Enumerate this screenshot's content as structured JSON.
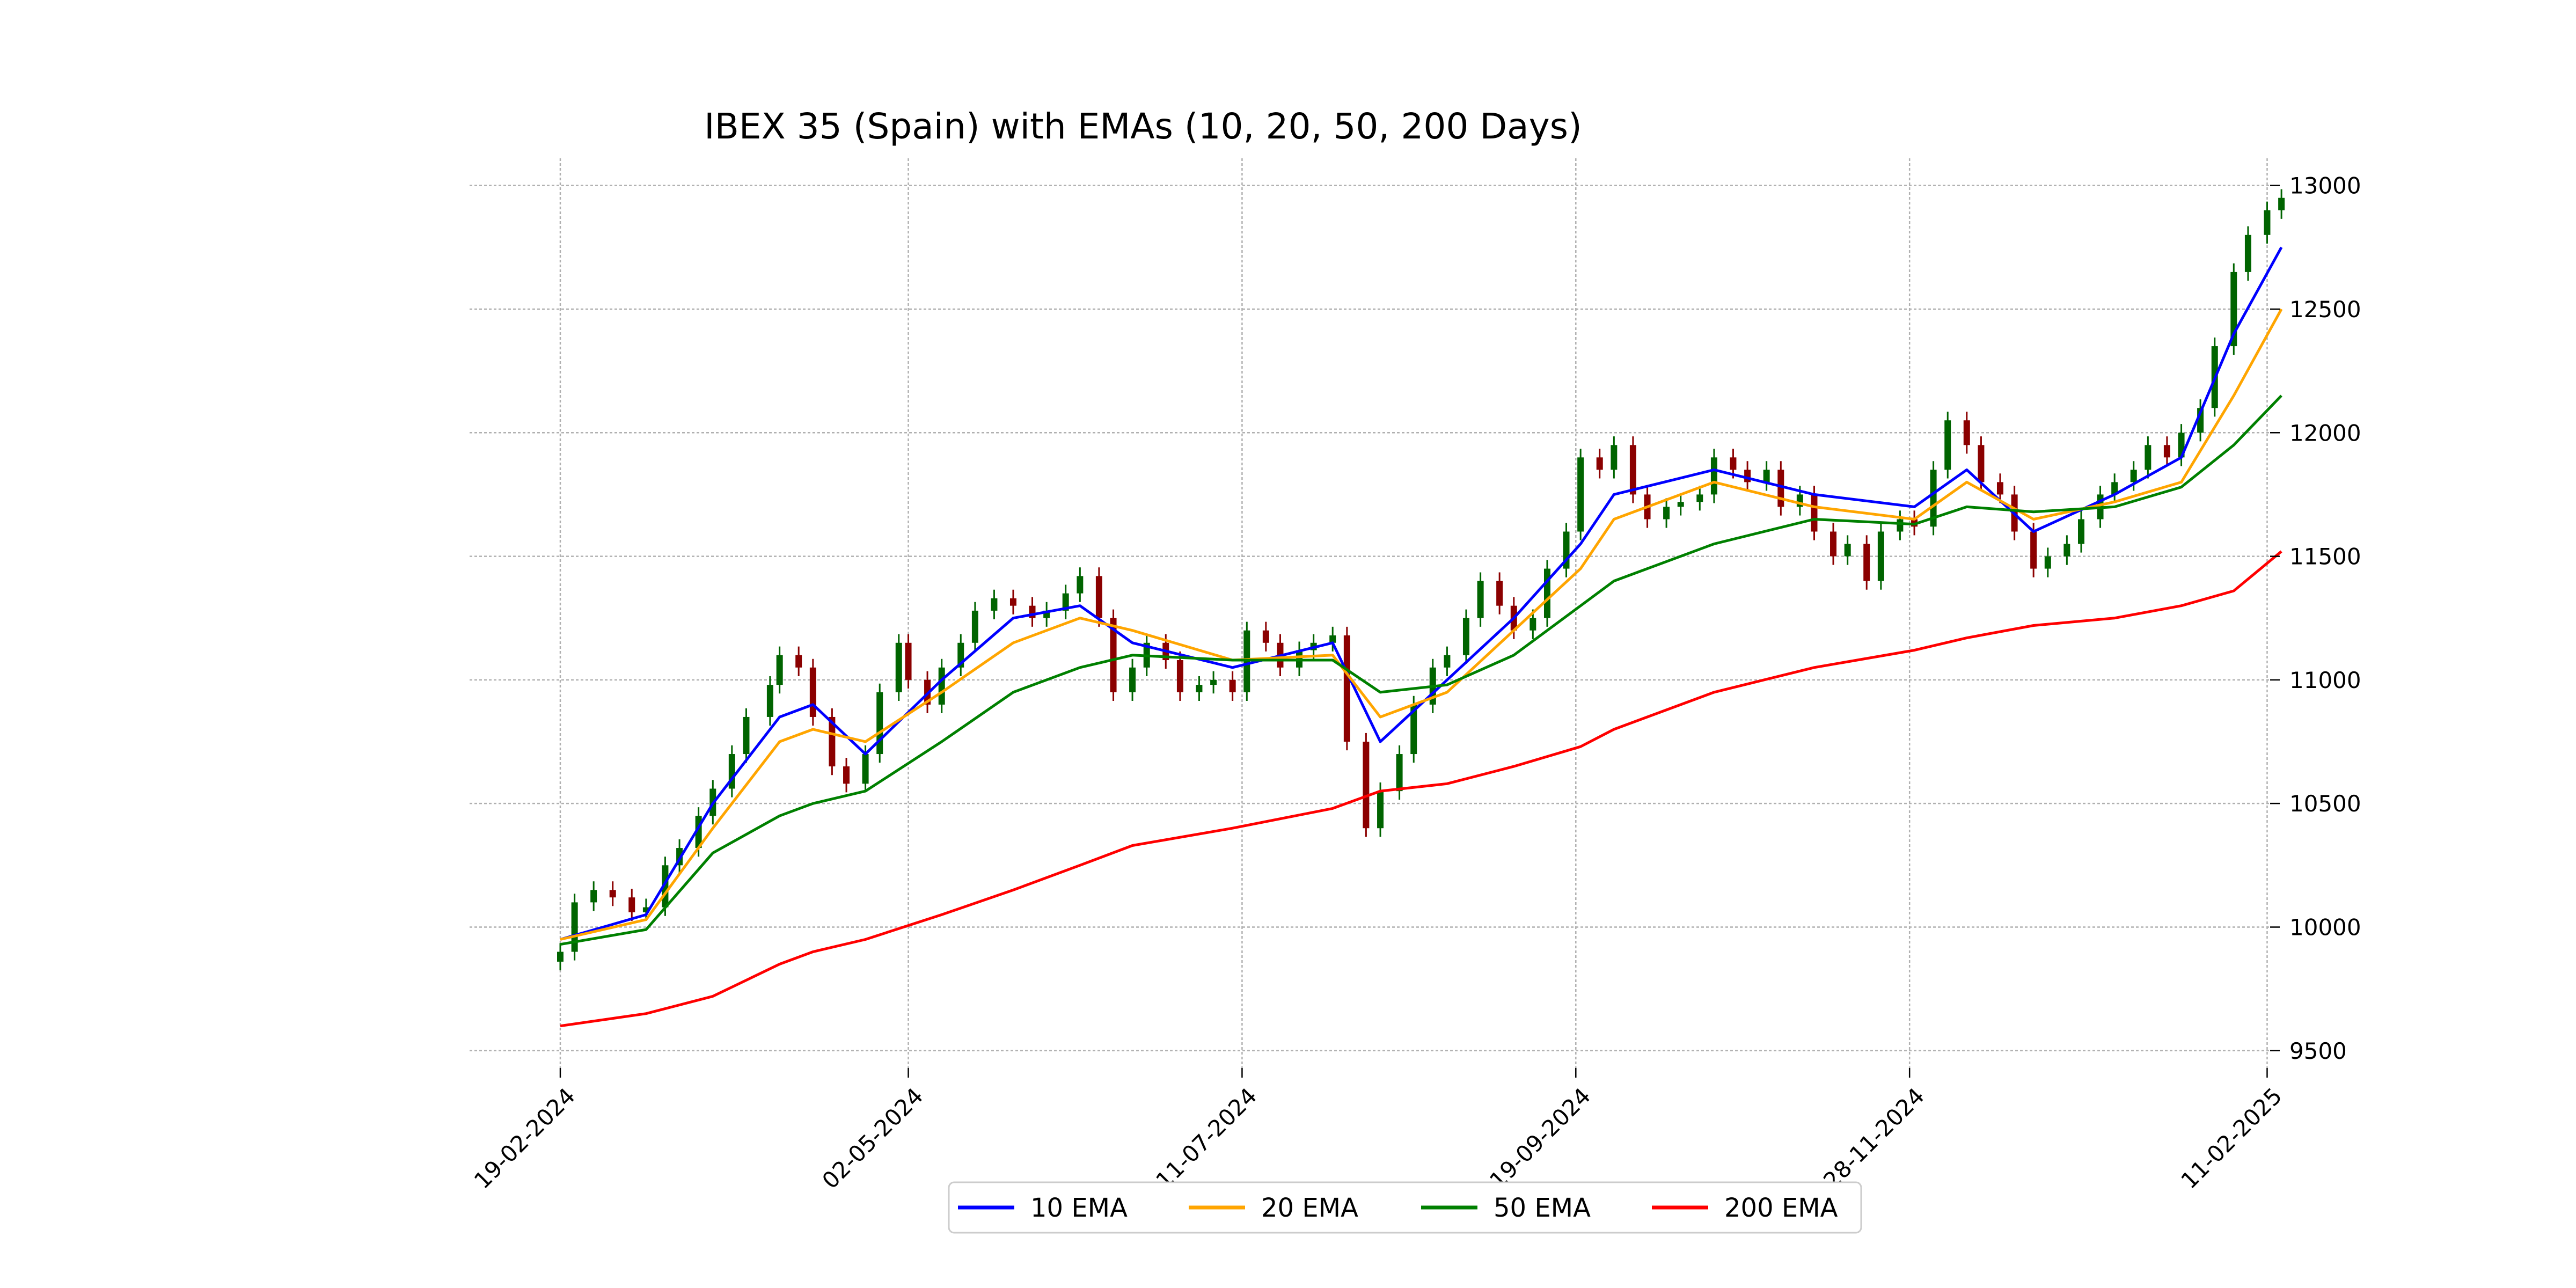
{
  "chart_data": {
    "type": "line",
    "title": "IBEX 35 (Spain) with EMAs (10, 20, 50, 200 Days)",
    "xlabel": "",
    "ylabel": "",
    "x_tick_labels": [
      "19-02-2024",
      "02-05-2024",
      "11-07-2024",
      "19-09-2024",
      "28-11-2024",
      "11-02-2025"
    ],
    "x_range": [
      "2024-02-19",
      "2025-02-14"
    ],
    "y_ticks": [
      9500,
      10000,
      10500,
      11000,
      11500,
      12000,
      12500,
      13000
    ],
    "ylim": [
      9430,
      13110
    ],
    "grid": true,
    "y_axis_side": "right",
    "legend_position": "bottom-center",
    "legend": [
      "10 EMA",
      "20 EMA",
      "50 EMA",
      "200 EMA"
    ],
    "candlestick": {
      "up_color": "#006400",
      "down_color": "#8b0000",
      "points": [
        [
          "2024-02-19",
          9900
        ],
        [
          "2024-02-22",
          10100
        ],
        [
          "2024-02-26",
          10150
        ],
        [
          "2024-03-01",
          10120
        ],
        [
          "2024-03-05",
          10060
        ],
        [
          "2024-03-08",
          10080
        ],
        [
          "2024-03-12",
          10250
        ],
        [
          "2024-03-15",
          10320
        ],
        [
          "2024-03-19",
          10450
        ],
        [
          "2024-03-22",
          10560
        ],
        [
          "2024-03-26",
          10700
        ],
        [
          "2024-03-29",
          10850
        ],
        [
          "2024-04-03",
          10980
        ],
        [
          "2024-04-05",
          11100
        ],
        [
          "2024-04-09",
          11050
        ],
        [
          "2024-04-12",
          10850
        ],
        [
          "2024-04-16",
          10650
        ],
        [
          "2024-04-19",
          10580
        ],
        [
          "2024-04-23",
          10700
        ],
        [
          "2024-04-26",
          10950
        ],
        [
          "2024-04-30",
          11150
        ],
        [
          "2024-05-02",
          11000
        ],
        [
          "2024-05-06",
          10900
        ],
        [
          "2024-05-09",
          11050
        ],
        [
          "2024-05-13",
          11150
        ],
        [
          "2024-05-16",
          11280
        ],
        [
          "2024-05-20",
          11330
        ],
        [
          "2024-05-24",
          11300
        ],
        [
          "2024-05-28",
          11250
        ],
        [
          "2024-05-31",
          11280
        ],
        [
          "2024-06-04",
          11350
        ],
        [
          "2024-06-07",
          11420
        ],
        [
          "2024-06-11",
          11250
        ],
        [
          "2024-06-14",
          10950
        ],
        [
          "2024-06-18",
          11050
        ],
        [
          "2024-06-21",
          11150
        ],
        [
          "2024-06-25",
          11080
        ],
        [
          "2024-06-28",
          10950
        ],
        [
          "2024-07-02",
          10980
        ],
        [
          "2024-07-05",
          11000
        ],
        [
          "2024-07-09",
          10950
        ],
        [
          "2024-07-12",
          11200
        ],
        [
          "2024-07-16",
          11150
        ],
        [
          "2024-07-19",
          11050
        ],
        [
          "2024-07-23",
          11120
        ],
        [
          "2024-07-26",
          11150
        ],
        [
          "2024-07-30",
          11180
        ],
        [
          "2024-08-02",
          10750
        ],
        [
          "2024-08-06",
          10400
        ],
        [
          "2024-08-09",
          10550
        ],
        [
          "2024-08-13",
          10700
        ],
        [
          "2024-08-16",
          10900
        ],
        [
          "2024-08-20",
          11050
        ],
        [
          "2024-08-23",
          11100
        ],
        [
          "2024-08-27",
          11250
        ],
        [
          "2024-08-30",
          11400
        ],
        [
          "2024-09-03",
          11300
        ],
        [
          "2024-09-06",
          11200
        ],
        [
          "2024-09-10",
          11250
        ],
        [
          "2024-09-13",
          11450
        ],
        [
          "2024-09-17",
          11600
        ],
        [
          "2024-09-20",
          11900
        ],
        [
          "2024-09-24",
          11850
        ],
        [
          "2024-09-27",
          11950
        ],
        [
          "2024-10-01",
          11750
        ],
        [
          "2024-10-04",
          11650
        ],
        [
          "2024-10-08",
          11700
        ],
        [
          "2024-10-11",
          11720
        ],
        [
          "2024-10-15",
          11750
        ],
        [
          "2024-10-18",
          11900
        ],
        [
          "2024-10-22",
          11850
        ],
        [
          "2024-10-25",
          11800
        ],
        [
          "2024-10-29",
          11850
        ],
        [
          "2024-11-01",
          11700
        ],
        [
          "2024-11-05",
          11750
        ],
        [
          "2024-11-08",
          11600
        ],
        [
          "2024-11-12",
          11500
        ],
        [
          "2024-11-15",
          11550
        ],
        [
          "2024-11-19",
          11400
        ],
        [
          "2024-11-22",
          11600
        ],
        [
          "2024-11-26",
          11650
        ],
        [
          "2024-11-29",
          11620
        ],
        [
          "2024-12-03",
          11850
        ],
        [
          "2024-12-06",
          12050
        ],
        [
          "2024-12-10",
          11950
        ],
        [
          "2024-12-13",
          11800
        ],
        [
          "2024-12-17",
          11750
        ],
        [
          "2024-12-20",
          11600
        ],
        [
          "2024-12-24",
          11450
        ],
        [
          "2024-12-27",
          11500
        ],
        [
          "2024-12-31",
          11550
        ],
        [
          "2025-01-03",
          11650
        ],
        [
          "2025-01-07",
          11750
        ],
        [
          "2025-01-10",
          11800
        ],
        [
          "2025-01-14",
          11850
        ],
        [
          "2025-01-17",
          11950
        ],
        [
          "2025-01-21",
          11900
        ],
        [
          "2025-01-24",
          12000
        ],
        [
          "2025-01-28",
          12100
        ],
        [
          "2025-01-31",
          12350
        ],
        [
          "2025-02-04",
          12650
        ],
        [
          "2025-02-07",
          12800
        ],
        [
          "2025-02-11",
          12900
        ],
        [
          "2025-02-14",
          12950
        ]
      ]
    },
    "x": [
      "2024-02-19",
      "2024-03-08",
      "2024-03-22",
      "2024-04-05",
      "2024-04-12",
      "2024-04-23",
      "2024-05-09",
      "2024-05-24",
      "2024-06-07",
      "2024-06-18",
      "2024-07-09",
      "2024-07-30",
      "2024-08-09",
      "2024-08-23",
      "2024-09-06",
      "2024-09-20",
      "2024-09-27",
      "2024-10-18",
      "2024-11-08",
      "2024-11-29",
      "2024-12-10",
      "2024-12-24",
      "2025-01-10",
      "2025-01-24",
      "2025-02-04",
      "2025-02-14"
    ],
    "series": [
      {
        "name": "10 EMA",
        "color": "#0000ff",
        "values": [
          9950,
          10050,
          10500,
          10850,
          10900,
          10700,
          11000,
          11250,
          11300,
          11150,
          11050,
          11150,
          10750,
          11000,
          11250,
          11550,
          11750,
          11850,
          11750,
          11700,
          11850,
          11600,
          11750,
          11900,
          12400,
          12750
        ]
      },
      {
        "name": "20 EMA",
        "color": "#ffa500",
        "values": [
          9950,
          10030,
          10400,
          10750,
          10800,
          10750,
          10950,
          11150,
          11250,
          11200,
          11080,
          11100,
          10850,
          10950,
          11200,
          11450,
          11650,
          11800,
          11700,
          11650,
          11800,
          11650,
          11720,
          11800,
          12150,
          12500
        ]
      },
      {
        "name": "50 EMA",
        "color": "#008000",
        "values": [
          9930,
          9990,
          10300,
          10450,
          10500,
          10550,
          10750,
          10950,
          11050,
          11100,
          11080,
          11080,
          10950,
          10980,
          11100,
          11300,
          11400,
          11550,
          11650,
          11630,
          11700,
          11680,
          11700,
          11780,
          11950,
          12150
        ]
      },
      {
        "name": "200 EMA",
        "color": "#ff0000",
        "values": [
          9600,
          9650,
          9720,
          9850,
          9900,
          9950,
          10050,
          10150,
          10250,
          10330,
          10400,
          10480,
          10550,
          10580,
          10650,
          10730,
          10800,
          10950,
          11050,
          11120,
          11170,
          11220,
          11250,
          11300,
          11360,
          11520
        ]
      }
    ]
  }
}
